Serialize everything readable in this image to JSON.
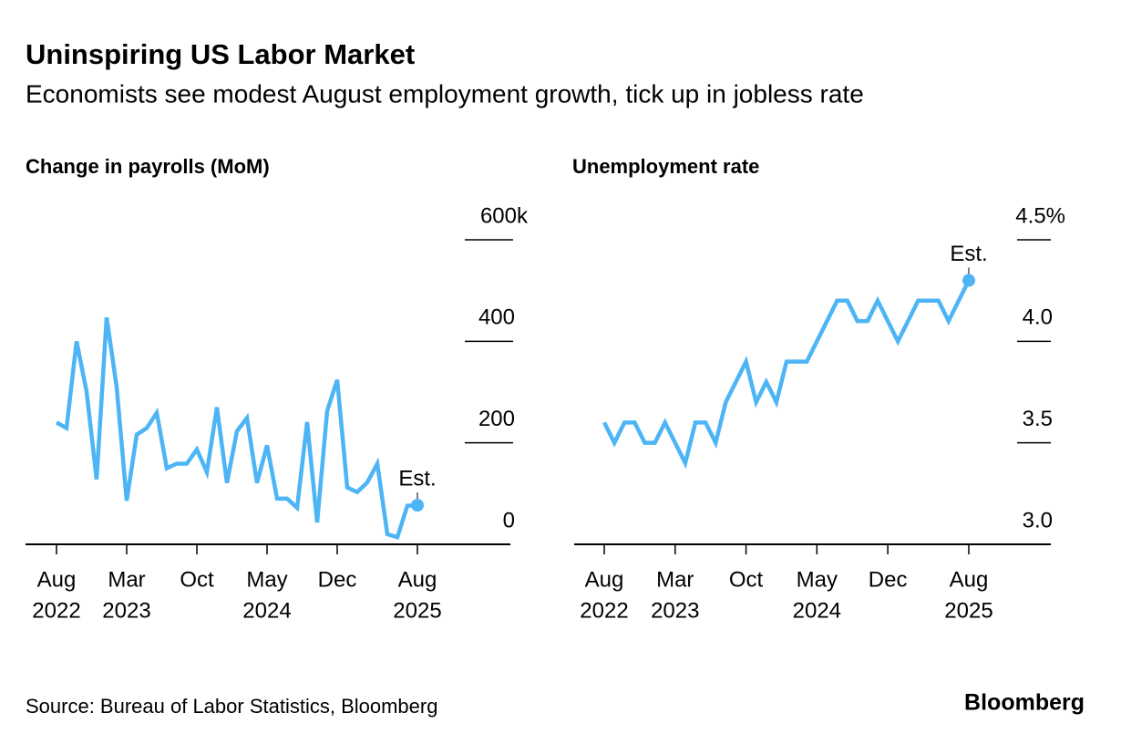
{
  "title": "Uninspiring US Labor Market",
  "subtitle": "Economists see modest August employment growth, tick up in jobless rate",
  "source": "Source: Bureau of Labor Statistics, Bloomberg",
  "brand": "Bloomberg",
  "chart_data": [
    {
      "type": "line",
      "title": "Change in payrolls (MoM)",
      "annotation": "Est.",
      "x": [
        "2022-08",
        "2022-09",
        "2022-10",
        "2022-11",
        "2022-12",
        "2023-01",
        "2023-02",
        "2023-03",
        "2023-04",
        "2023-05",
        "2023-06",
        "2023-07",
        "2023-08",
        "2023-09",
        "2023-10",
        "2023-11",
        "2023-12",
        "2024-01",
        "2024-02",
        "2024-03",
        "2024-04",
        "2024-05",
        "2024-06",
        "2024-07",
        "2024-08",
        "2024-09",
        "2024-10",
        "2024-11",
        "2024-12",
        "2025-01",
        "2025-02",
        "2025-03",
        "2025-04",
        "2025-05",
        "2025-06",
        "2025-07",
        "2025-08"
      ],
      "series": [
        {
          "name": "Change in payrolls",
          "color": "#4db5f5",
          "values": [
            240,
            229,
            400,
            301,
            128,
            447,
            310,
            86,
            216,
            229,
            259,
            150,
            159,
            159,
            187,
            142,
            270,
            121,
            223,
            249,
            121,
            195,
            90,
            90,
            72,
            241,
            43,
            263,
            324,
            112,
            103,
            122,
            159,
            20,
            14,
            76,
            77
          ]
        }
      ],
      "ylim": [
        0,
        600
      ],
      "yticks": [
        0,
        200,
        400,
        {
          "value": 600,
          "label": "600k"
        }
      ],
      "xticks": [
        {
          "value": "2022-08",
          "label": [
            "Aug",
            "2022"
          ]
        },
        {
          "value": "2023-03",
          "label": [
            "Mar",
            "2023"
          ]
        },
        {
          "value": "2023-10",
          "label": [
            "Oct"
          ]
        },
        {
          "value": "2024-05",
          "label": [
            "May",
            "2024"
          ]
        },
        {
          "value": "2024-12",
          "label": [
            "Dec"
          ]
        },
        {
          "value": "2025-08",
          "label": [
            "Aug",
            "2025"
          ]
        }
      ]
    },
    {
      "type": "line",
      "title": "Unemployment rate",
      "annotation": "Est.",
      "x": [
        "2022-08",
        "2022-09",
        "2022-10",
        "2022-11",
        "2022-12",
        "2023-01",
        "2023-02",
        "2023-03",
        "2023-04",
        "2023-05",
        "2023-06",
        "2023-07",
        "2023-08",
        "2023-09",
        "2023-10",
        "2023-11",
        "2023-12",
        "2024-01",
        "2024-02",
        "2024-03",
        "2024-04",
        "2024-05",
        "2024-06",
        "2024-07",
        "2024-08",
        "2024-09",
        "2024-10",
        "2024-11",
        "2024-12",
        "2025-01",
        "2025-02",
        "2025-03",
        "2025-04",
        "2025-05",
        "2025-06",
        "2025-07",
        "2025-08"
      ],
      "series": [
        {
          "name": "Unemployment rate",
          "color": "#4db5f5",
          "values": [
            3.6,
            3.5,
            3.6,
            3.6,
            3.5,
            3.5,
            3.6,
            3.5,
            3.4,
            3.6,
            3.6,
            3.5,
            3.7,
            3.8,
            3.9,
            3.7,
            3.8,
            3.7,
            3.9,
            3.9,
            3.9,
            4.0,
            4.1,
            4.2,
            4.2,
            4.1,
            4.1,
            4.2,
            4.1,
            4.0,
            4.1,
            4.2,
            4.2,
            4.2,
            4.1,
            4.2,
            4.3
          ]
        }
      ],
      "ylim": [
        3,
        4.5
      ],
      "yticks": [
        {
          "value": 3,
          "label": "3.0"
        },
        3.5,
        {
          "value": 4,
          "label": "4.0"
        },
        {
          "value": 4.5,
          "label": "4.5%"
        }
      ],
      "xticks": [
        {
          "value": "2022-08",
          "label": [
            "Aug",
            "2022"
          ]
        },
        {
          "value": "2023-03",
          "label": [
            "Mar",
            "2023"
          ]
        },
        {
          "value": "2023-10",
          "label": [
            "Oct"
          ]
        },
        {
          "value": "2024-05",
          "label": [
            "May",
            "2024"
          ]
        },
        {
          "value": "2024-12",
          "label": [
            "Dec"
          ]
        },
        {
          "value": "2025-08",
          "label": [
            "Aug",
            "2025"
          ]
        }
      ]
    }
  ]
}
